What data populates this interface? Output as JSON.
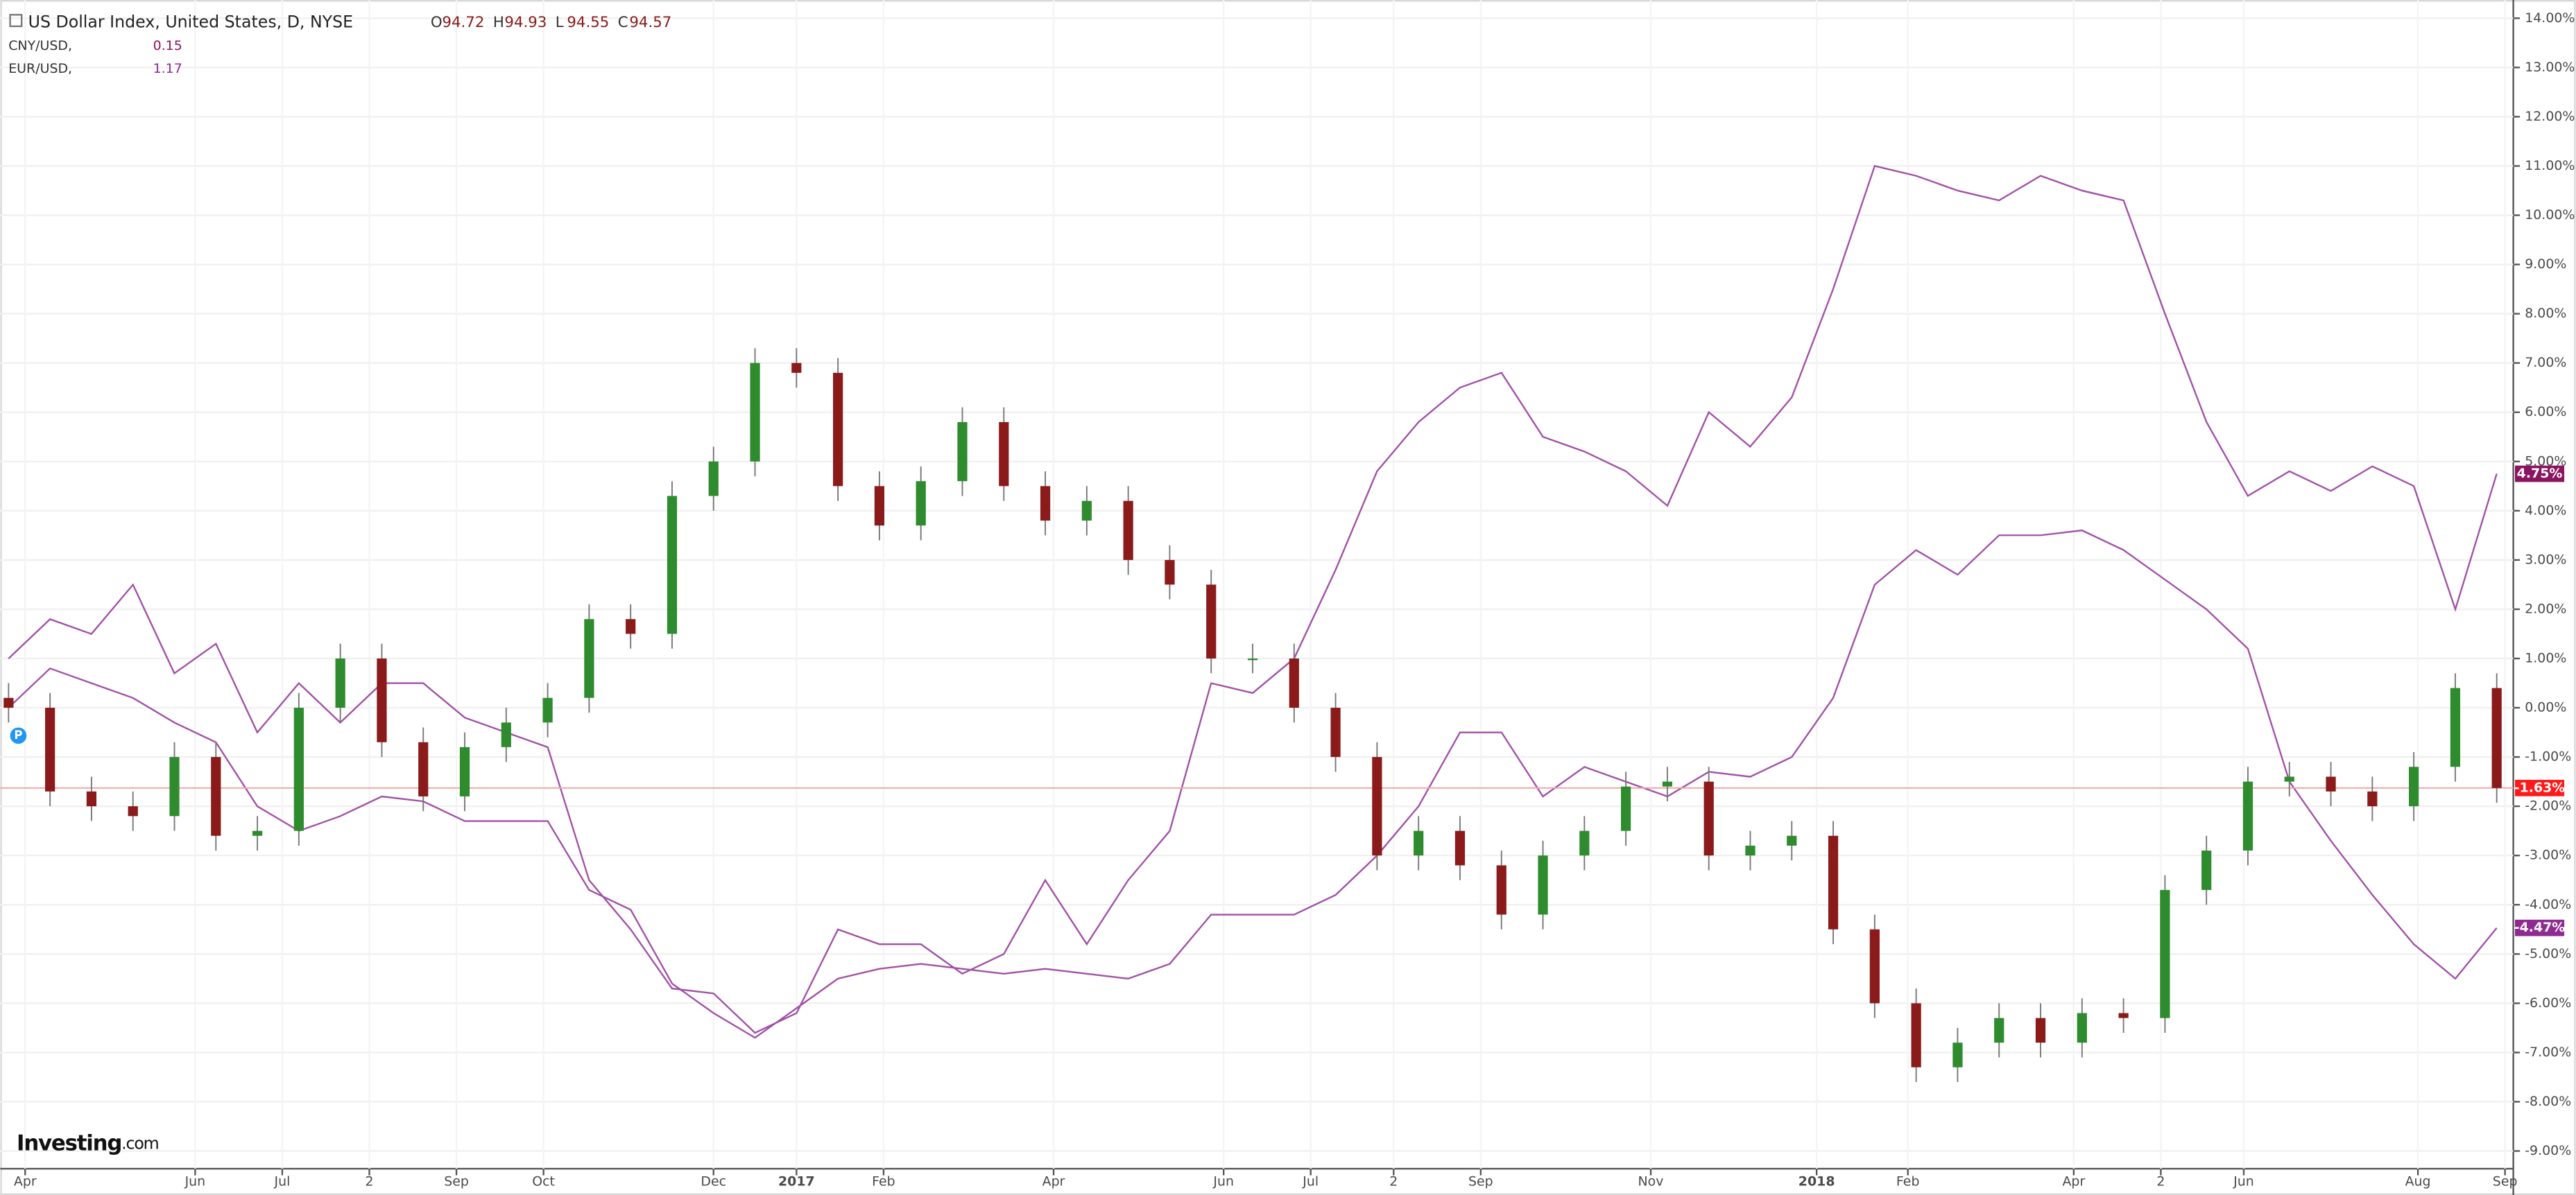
{
  "chart_data": {
    "type": "candlestick",
    "watermark": {
      "brand": "Investing",
      "suffix": ".com"
    },
    "marker_label": "P",
    "x": [
      0,
      1,
      2,
      3,
      4,
      5,
      6,
      7,
      8,
      9,
      10,
      11,
      12,
      13,
      14,
      15,
      16,
      17,
      18,
      19,
      20,
      21,
      22,
      23,
      24,
      25,
      26,
      27,
      28,
      29,
      30,
      31,
      32,
      33,
      34,
      35,
      36,
      37,
      38,
      39,
      40,
      41,
      42,
      43,
      44,
      45,
      46,
      47,
      48,
      49,
      50,
      51,
      52,
      53,
      54,
      55,
      56,
      57,
      58,
      59,
      60
    ],
    "xlim": [
      -0.2,
      60.4
    ],
    "xticks": [
      {
        "value": 0.4,
        "label": "Apr"
      },
      {
        "value": 4.5,
        "label": "Jun"
      },
      {
        "value": 6.6,
        "label": "Jul"
      },
      {
        "value": 8.7,
        "label": "2"
      },
      {
        "value": 10.8,
        "label": "Sep"
      },
      {
        "value": 12.9,
        "label": "Oct"
      },
      {
        "value": 17.0,
        "label": "Dec"
      },
      {
        "value": 19.0,
        "label": "2017"
      },
      {
        "value": 21.1,
        "label": "Feb"
      },
      {
        "value": 25.2,
        "label": "Apr"
      },
      {
        "value": 29.3,
        "label": "Jun"
      },
      {
        "value": 31.4,
        "label": "Jul"
      },
      {
        "value": 33.4,
        "label": "2"
      },
      {
        "value": 35.5,
        "label": "Sep"
      },
      {
        "value": 39.6,
        "label": "Nov"
      },
      {
        "value": 43.6,
        "label": "2018"
      },
      {
        "value": 45.8,
        "label": "Feb"
      },
      {
        "value": 49.8,
        "label": "Apr"
      },
      {
        "value": 51.9,
        "label": "2"
      },
      {
        "value": 53.9,
        "label": "Jun"
      },
      {
        "value": 58.1,
        "label": "Aug"
      },
      {
        "value": 60.2,
        "label": "Sep"
      }
    ],
    "ylim": [
      -9.36,
      14.37
    ],
    "yticks": [
      {
        "value": 14,
        "label": "14.00%"
      },
      {
        "value": 13,
        "label": "13.00%"
      },
      {
        "value": 12,
        "label": "12.00%"
      },
      {
        "value": 11,
        "label": "11.00%"
      },
      {
        "value": 10,
        "label": "10.00%"
      },
      {
        "value": 9,
        "label": "9.00%"
      },
      {
        "value": 8,
        "label": "8.00%"
      },
      {
        "value": 7,
        "label": "7.00%"
      },
      {
        "value": 6,
        "label": "6.00%"
      },
      {
        "value": 5,
        "label": "5.00%"
      },
      {
        "value": 4,
        "label": "4.00%"
      },
      {
        "value": 3,
        "label": "3.00%"
      },
      {
        "value": 2,
        "label": "2.00%"
      },
      {
        "value": 1,
        "label": "1.00%"
      },
      {
        "value": 0,
        "label": "0.00%"
      },
      {
        "value": -1,
        "label": "-1.00%"
      },
      {
        "value": -2,
        "label": "-2.00%"
      },
      {
        "value": -3,
        "label": "-3.00%"
      },
      {
        "value": -4,
        "label": "-4.00%"
      },
      {
        "value": -5,
        "label": "-5.00%"
      },
      {
        "value": -6,
        "label": "-6.00%"
      },
      {
        "value": -7,
        "label": "-7.00%"
      },
      {
        "value": -8,
        "label": "-8.00%"
      },
      {
        "value": -9,
        "label": "-9.00%"
      }
    ],
    "grid": true,
    "candles": {
      "name": "US Dollar Index, United States, D, NYSE",
      "ohlc_legend": [
        {
          "label": "O",
          "value": "94.72"
        },
        {
          "label": "H",
          "value": "94.93"
        },
        {
          "label": "L",
          "value": "94.55"
        },
        {
          "label": "C",
          "value": "94.57"
        }
      ],
      "up_color": "#2e8b2e",
      "down_color": "#8b1a1a",
      "tag_color": "#ff1a1a",
      "open": [
        0.2,
        0,
        -1.7,
        -2,
        -2.2,
        -1,
        -2.6,
        -2.5,
        0,
        1,
        -0.7,
        -1.8,
        -0.8,
        -0.3,
        0.2,
        1.8,
        1.5,
        4.3,
        5,
        7,
        6.8,
        4.5,
        3.7,
        4.6,
        5.8,
        4.5,
        3.8,
        4.2,
        3,
        2.5,
        1,
        1,
        0,
        -1,
        -3,
        -2.5,
        -3.2,
        -4.2,
        -3,
        -2.5,
        -1.6,
        -1.5,
        -3,
        -2.8,
        -2.6,
        -4.5,
        -6,
        -7.3,
        -6.8,
        -6.3,
        -6.8,
        -6.2,
        -6.3,
        -3.7,
        -2.9,
        -1.5,
        -1.4,
        -1.7,
        -2,
        -1.2,
        0.4
      ],
      "high": [
        0.5,
        0.3,
        -1.4,
        -1.7,
        -0.7,
        -0.7,
        -2.2,
        0.3,
        1.3,
        1.3,
        -0.4,
        -0.5,
        0,
        0.5,
        2.1,
        2.1,
        4.6,
        5.3,
        7.3,
        7.3,
        7.1,
        4.8,
        4.9,
        6.1,
        6.1,
        4.8,
        4.5,
        4.5,
        3.3,
        2.8,
        1.3,
        1.3,
        0.3,
        -0.7,
        -2.2,
        -2.2,
        -2.9,
        -2.7,
        -2.2,
        -1.3,
        -1.2,
        -1.2,
        -2.5,
        -2.3,
        -2.3,
        -4.2,
        -5.7,
        -6.5,
        -6,
        -6,
        -5.9,
        -5.9,
        -3.4,
        -2.6,
        -1.2,
        -1.1,
        -1.1,
        -1.4,
        -0.9,
        0.7,
        0.7
      ],
      "low": [
        -0.3,
        -2,
        -2.3,
        -2.5,
        -2.5,
        -2.9,
        -2.9,
        -2.8,
        -0.3,
        -1,
        -2.1,
        -2.1,
        -1.1,
        -0.6,
        -0.1,
        1.2,
        1.2,
        4,
        4.7,
        6.5,
        4.2,
        3.4,
        3.4,
        4.3,
        4.2,
        3.5,
        3.5,
        2.7,
        2.2,
        0.7,
        0.7,
        -0.3,
        -1.3,
        -3.3,
        -3.3,
        -3.5,
        -4.5,
        -4.5,
        -3.3,
        -2.8,
        -1.9,
        -3.3,
        -3.3,
        -3.1,
        -4.8,
        -6.3,
        -7.6,
        -7.6,
        -7.1,
        -7.1,
        -7.1,
        -6.6,
        -6.6,
        -4,
        -3.2,
        -1.8,
        -2,
        -2.3,
        -2.3,
        -1.5,
        -1.93
      ],
      "close": [
        0,
        -1.7,
        -2,
        -2.2,
        -1,
        -2.6,
        -2.5,
        0,
        1,
        -0.7,
        -1.8,
        -0.8,
        -0.3,
        0.2,
        1.8,
        1.5,
        4.3,
        5,
        7,
        6.8,
        4.5,
        3.7,
        4.6,
        5.8,
        4.5,
        3.8,
        4.2,
        3,
        2.5,
        1,
        1,
        0,
        -1,
        -3,
        -2.5,
        -3.2,
        -4.2,
        -3,
        -2.5,
        -1.6,
        -1.5,
        -3,
        -2.8,
        -2.6,
        -4.5,
        -6,
        -7.3,
        -6.8,
        -6.3,
        -6.8,
        -6.2,
        -6.3,
        -3.7,
        -2.9,
        -1.5,
        -1.4,
        -1.7,
        -2,
        -1.2,
        0.4,
        -1.63
      ],
      "last_value_label": "-1.63%"
    },
    "series": [
      {
        "name": "CNY/USD,",
        "legend_value": "0.15",
        "color": "#a150a6",
        "tag_color": "#8b1460",
        "values": [
          1,
          1.8,
          1.5,
          2.5,
          0.7,
          1.3,
          -0.5,
          0.5,
          -0.3,
          0.5,
          0.5,
          -0.2,
          -0.5,
          -0.8,
          -3.5,
          -4.5,
          -5.7,
          -5.8,
          -6.6,
          -6.2,
          -4.5,
          -4.8,
          -4.8,
          -5.4,
          -5,
          -3.5,
          -4.8,
          -3.5,
          -2.5,
          0.5,
          0.3,
          1,
          2.8,
          4.8,
          5.8,
          6.5,
          6.8,
          5.5,
          5.2,
          4.8,
          4.1,
          6,
          5.3,
          6.3,
          8.5,
          11,
          10.8,
          10.5,
          10.3,
          10.8,
          10.5,
          10.3,
          8,
          5.8,
          4.3,
          4.8,
          4.4,
          4.9,
          4.5,
          2,
          4.75
        ],
        "last_value_label": "4.75%"
      },
      {
        "name": "EUR/USD,",
        "legend_value": "1.17",
        "color": "#a150a6",
        "tag_color": "#8e2a92",
        "values": [
          0,
          0.8,
          0.5,
          0.2,
          -0.3,
          -0.7,
          -2,
          -2.5,
          -2.2,
          -1.8,
          -1.9,
          -2.3,
          -2.3,
          -2.3,
          -3.7,
          -4.1,
          -5.6,
          -6.2,
          -6.7,
          -6.1,
          -5.5,
          -5.3,
          -5.2,
          -5.3,
          -5.4,
          -5.3,
          -5.4,
          -5.5,
          -5.2,
          -4.2,
          -4.2,
          -4.2,
          -3.8,
          -3,
          -2,
          -0.5,
          -0.5,
          -1.8,
          -1.2,
          -1.5,
          -1.8,
          -1.3,
          -1.4,
          -1,
          0.2,
          2.5,
          3.2,
          2.7,
          3.5,
          3.5,
          3.6,
          3.2,
          2.6,
          2,
          1.2,
          -1.5,
          -2.7,
          -3.8,
          -4.8,
          -5.5,
          -4.47
        ],
        "last_value_label": "-4.47%"
      }
    ]
  }
}
